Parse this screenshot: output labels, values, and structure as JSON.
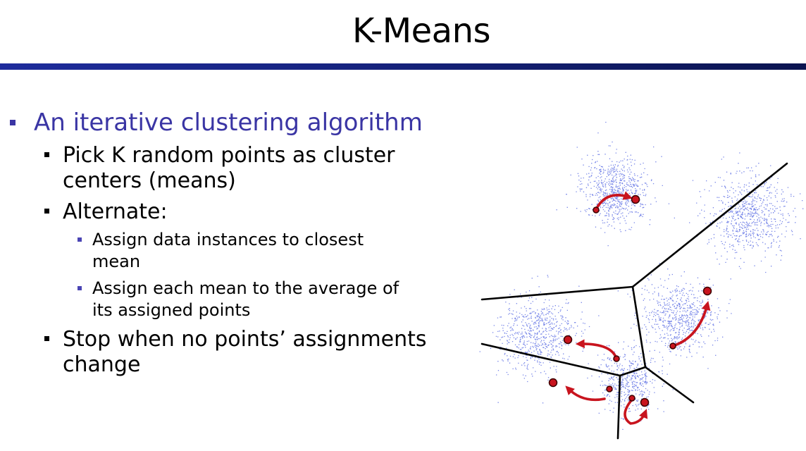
{
  "title": "K-Means",
  "bullets": {
    "level1": "An iterative clustering algorithm",
    "pick_line1": "Pick K random points as cluster",
    "pick_line2": "centers (means)",
    "alternate": "Alternate:",
    "assign_instances_line1": "Assign data instances to closest",
    "assign_instances_line2": "mean",
    "assign_mean_line1": "Assign each mean to the average of",
    "assign_mean_line2": "its assigned points",
    "stop_line1": "Stop when no points’ assignments",
    "stop_line2": "change"
  },
  "colors": {
    "title_rule": "#1e2c9c",
    "level1_text": "#3a35a4",
    "points": "#4a5ee0",
    "means": "#c8141e",
    "arrows": "#c8141e",
    "boundaries": "#000000"
  }
}
